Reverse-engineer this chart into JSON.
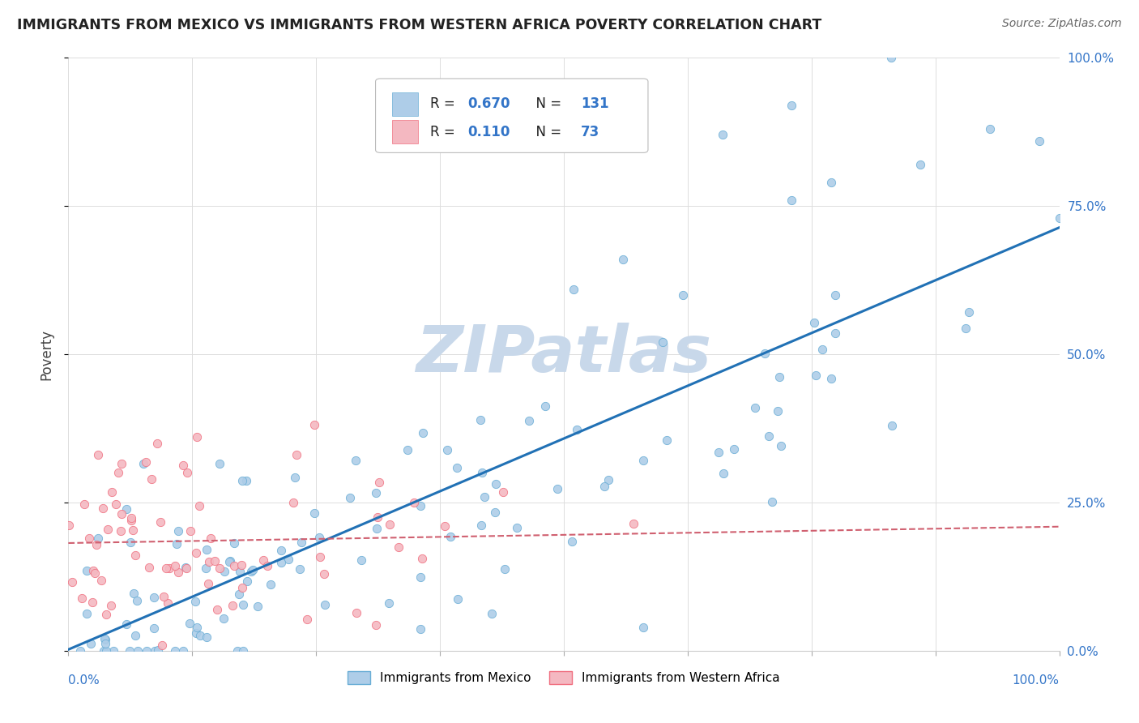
{
  "title": "IMMIGRANTS FROM MEXICO VS IMMIGRANTS FROM WESTERN AFRICA POVERTY CORRELATION CHART",
  "source": "Source: ZipAtlas.com",
  "ylabel": "Poverty",
  "xlim": [
    0,
    1
  ],
  "ylim": [
    0,
    1
  ],
  "ytick_labels": [
    "0.0%",
    "25.0%",
    "50.0%",
    "75.0%",
    "100.0%"
  ],
  "ytick_values": [
    0.0,
    0.25,
    0.5,
    0.75,
    1.0
  ],
  "mexico_scatter_fill": "#aecde8",
  "mexico_scatter_edge": "#6aaed6",
  "wa_scatter_fill": "#f4b8c1",
  "wa_scatter_edge": "#f07080",
  "trend_mexico_color": "#2171b5",
  "trend_wa_color": "#d06070",
  "legend_mexico_label": "Immigrants from Mexico",
  "legend_wa_label": "Immigrants from Western Africa",
  "R_mexico": "0.670",
  "N_mexico": "131",
  "R_wa": "0.110",
  "N_wa": "73",
  "watermark": "ZIPatlas",
  "watermark_color": "#c8d8ea",
  "background_color": "#ffffff",
  "grid_color": "#dddddd",
  "title_color": "#222222",
  "source_color": "#666666",
  "tick_label_color": "#3375c8",
  "ylabel_color": "#444444",
  "legend_r_color": "#222222",
  "legend_n_color": "#3375c8"
}
